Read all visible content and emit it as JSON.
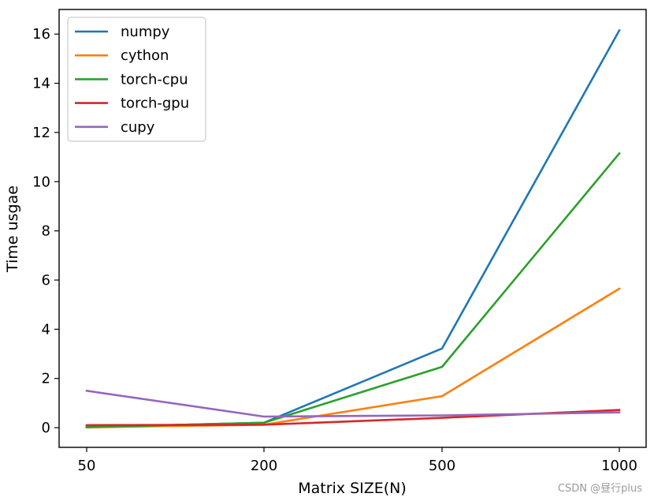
{
  "chart_data": {
    "type": "line",
    "categories": [
      "50",
      "200",
      "500",
      "1000"
    ],
    "series": [
      {
        "name": "numpy",
        "color": "#1f77b4",
        "values": [
          0.02,
          0.2,
          3.22,
          16.15
        ]
      },
      {
        "name": "cython",
        "color": "#ff7f0e",
        "values": [
          0.01,
          0.12,
          1.28,
          5.65
        ]
      },
      {
        "name": "torch-cpu",
        "color": "#2ca02c",
        "values": [
          0.02,
          0.2,
          2.47,
          11.15
        ]
      },
      {
        "name": "torch-gpu",
        "color": "#d62728",
        "values": [
          0.1,
          0.12,
          0.4,
          0.72
        ]
      },
      {
        "name": "cupy",
        "color": "#9467bd",
        "values": [
          1.5,
          0.45,
          0.5,
          0.62
        ]
      }
    ],
    "title": "",
    "xlabel": "Matrix SIZE(N)",
    "ylabel": "Time usgae",
    "ylim": [
      -0.8,
      17.0
    ],
    "yticks": [
      0,
      2,
      4,
      6,
      8,
      10,
      12,
      14,
      16
    ],
    "grid": false,
    "legend_position": "upper-left"
  },
  "watermark": "CSDN @昼行plus"
}
